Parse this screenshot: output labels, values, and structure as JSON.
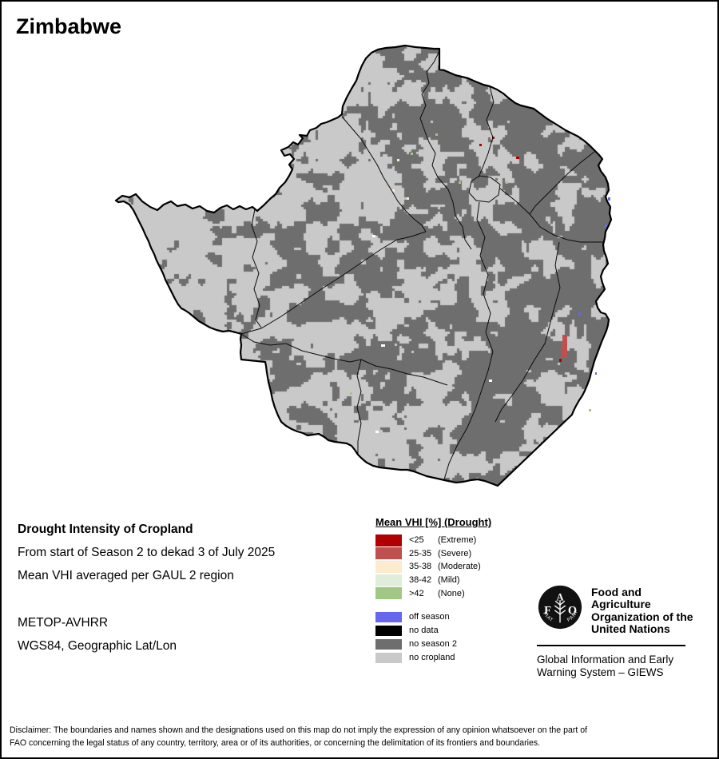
{
  "title": "Zimbabwe",
  "info_block": {
    "heading": "Drought Intensity of Cropland",
    "period_line": "From start of Season 2 to dekad 3 of July 2025",
    "aggregation_line": "Mean VHI averaged per GAUL 2 region",
    "sensor": "METOP-AVHRR",
    "projection": "WGS84, Geographic Lat/Lon"
  },
  "legend": {
    "heading": "Mean VHI [%] (Drought)",
    "drought_classes": [
      {
        "range": "<25",
        "label": "(Extreme)",
        "color": "#B00000"
      },
      {
        "range": "25-35",
        "label": "(Severe)",
        "color": "#C0504D"
      },
      {
        "range": "35-38",
        "label": "(Moderate)",
        "color": "#FDEBCD"
      },
      {
        "range": "38-42",
        "label": "(Mild)",
        "color": "#E1EDDB"
      },
      {
        "range": ">42",
        "label": "(None)",
        "color": "#A0C884"
      }
    ],
    "other_classes": [
      {
        "label": "off season",
        "color": "#6666EE"
      },
      {
        "label": "no data",
        "color": "#000000"
      },
      {
        "label": "no season 2",
        "color": "#6E6E6E"
      },
      {
        "label": "no cropland",
        "color": "#C9C9C9"
      }
    ]
  },
  "footer": {
    "fao_logo_letters": [
      "F",
      "A",
      "O"
    ],
    "fao_motto_left": "FIAT",
    "fao_motto_right": "PANIS",
    "fao_name_lines": [
      "Food and Agriculture",
      "Organization of the",
      "United Nations"
    ],
    "giews_lines": [
      "Global Information and Early",
      "Warning System – GIEWS"
    ]
  },
  "disclaimer": "Disclaimer: The boundaries and names shown and the designations used on this map do not imply the expression of any opinion whatsoever on the part of FAO concerning the legal status of any country, territory, area or of its authorities, or concerning the delimitation of its frontiers and boundaries."
}
